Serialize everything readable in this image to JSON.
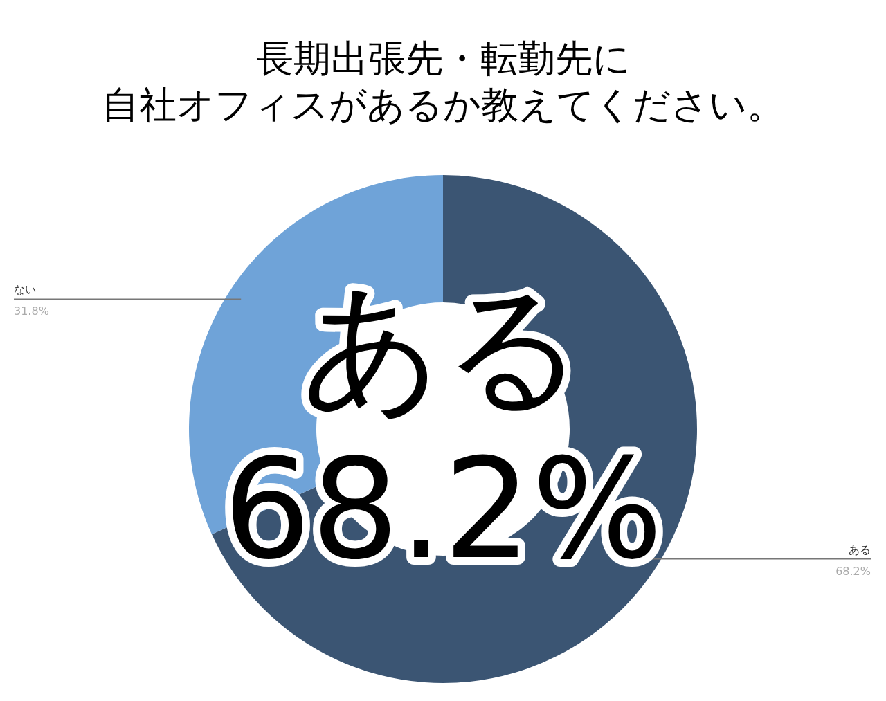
{
  "chart_data": {
    "type": "donut",
    "title": "長期出張先・転勤先に",
    "subtitle": "自社オフィスがあるか教えてください。",
    "categories": [
      "ある",
      "ない"
    ],
    "values": [
      68.2,
      31.8
    ],
    "colors": [
      "#3b5573",
      "#6fa3d8"
    ],
    "value_labels": [
      "68.2%",
      "31.8%"
    ],
    "annotations": [
      "ある\n68.2%"
    ]
  }
}
